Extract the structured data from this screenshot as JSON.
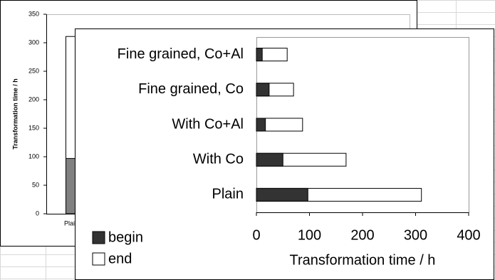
{
  "chart_data": [
    {
      "type": "bar",
      "orientation": "vertical",
      "barmode": "overlay",
      "y_label": "Transformation time / h",
      "categories": [
        "Plain"
      ],
      "series": [
        {
          "name": "begin",
          "color": "#808080",
          "values": [
            97
          ]
        },
        {
          "name": "end",
          "color": "#ffffff",
          "values": [
            311
          ]
        }
      ],
      "ylim": [
        0,
        350
      ],
      "yticks": [
        0,
        50,
        100,
        150,
        200,
        250,
        300,
        350
      ]
    },
    {
      "type": "bar",
      "orientation": "horizontal",
      "barmode": "overlay",
      "x_label": "Transformation time / h",
      "categories": [
        "Fine grained, Co+Al",
        "Fine grained, Co",
        "With Co+Al",
        "With Co",
        "Plain"
      ],
      "series": [
        {
          "name": "begin",
          "color": "#333333",
          "values": [
            11,
            24,
            17,
            50,
            97
          ]
        },
        {
          "name": "end",
          "color": "#ffffff",
          "values": [
            58,
            70,
            87,
            169,
            311
          ]
        }
      ],
      "xlim": [
        0,
        400
      ],
      "xticks": [
        0,
        100,
        200,
        300,
        400
      ],
      "legend": "bottom-left"
    }
  ]
}
